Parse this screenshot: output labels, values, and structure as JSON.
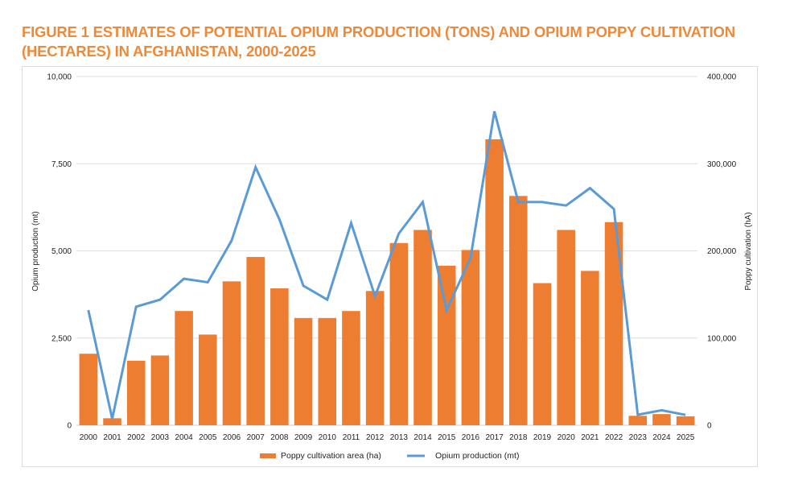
{
  "chart_data": {
    "type": "bar+line",
    "title": "FIGURE 1 ESTIMATES OF POTENTIAL OPIUM PRODUCTION (TONS) AND OPIUM POPPY CULTIVATION (HECTARES) IN AFGHANISTAN, 2000-2025",
    "categories": [
      "2000",
      "2001",
      "2002",
      "2003",
      "2004",
      "2005",
      "2006",
      "2007",
      "2008",
      "2009",
      "2010",
      "2011",
      "2012",
      "2013",
      "2014",
      "2015",
      "2016",
      "2017",
      "2018",
      "2019",
      "2020",
      "2021",
      "2022",
      "2023",
      "2024",
      "2025"
    ],
    "series": [
      {
        "name": "Poppy cultivation area (ha)",
        "type": "bar",
        "axis": "right",
        "color": "#ed7d31",
        "values": [
          82000,
          8000,
          74000,
          80000,
          131000,
          104000,
          165000,
          193000,
          157000,
          123000,
          123000,
          131000,
          154000,
          209000,
          224000,
          183000,
          201000,
          328000,
          263000,
          163000,
          224000,
          177000,
          233000,
          10800,
          12800,
          10200
        ]
      },
      {
        "name": "Opium production (mt)",
        "type": "line",
        "axis": "left",
        "color": "#5b9bd5",
        "values": [
          3300,
          185,
          3400,
          3600,
          4200,
          4100,
          5300,
          7400,
          5900,
          4000,
          3600,
          5800,
          3700,
          5500,
          6400,
          3300,
          4800,
          9000,
          6400,
          6400,
          6300,
          6800,
          6200,
          300,
          430,
          296
        ]
      }
    ],
    "ylabel": "Opium production (mt)",
    "y2label": "Poppy cultivation (hA)",
    "ylim": [
      0,
      10000
    ],
    "y2lim": [
      0,
      400000
    ],
    "yticks": [
      0,
      2500,
      5000,
      7500,
      10000
    ],
    "ytick_labels": [
      "0",
      "2,500",
      "5,000",
      "7,500",
      "10,000"
    ],
    "y2ticks": [
      0,
      100000,
      200000,
      300000,
      400000
    ],
    "y2tick_labels": [
      "0",
      "100,000",
      "200,000",
      "300,000",
      "400,000"
    ],
    "grid": true,
    "legend": "bottom-center"
  }
}
